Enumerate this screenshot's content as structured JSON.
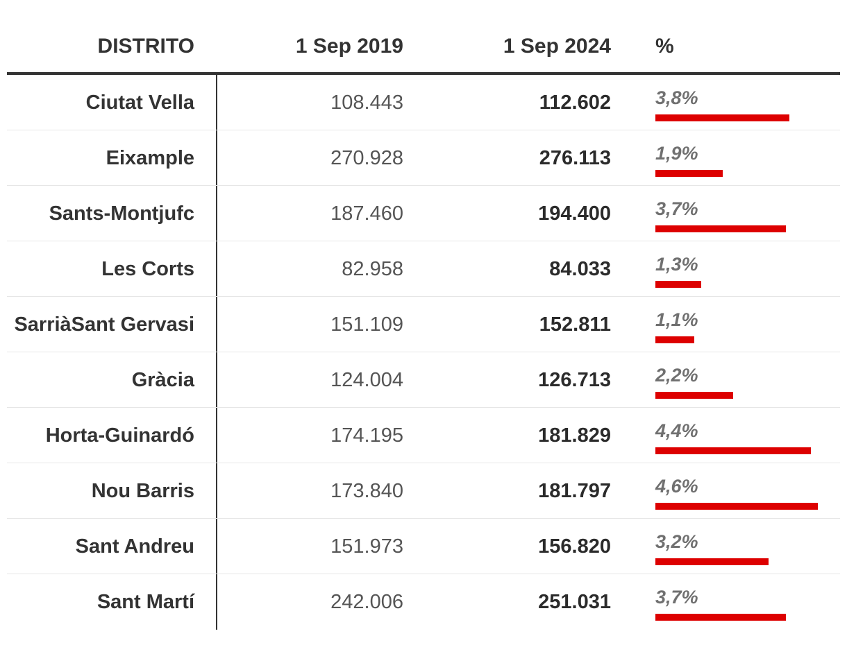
{
  "chart_data": {
    "type": "table",
    "columns": [
      "DISTRITO",
      "1 Sep 2019",
      "1 Sep 2024",
      "%"
    ],
    "bar_color": "#dd0000",
    "bar_max_pct": 4.6,
    "rows": [
      {
        "district": "Ciutat Vella",
        "y2019": "108.443",
        "y2024": "112.602",
        "pct_label": "3,8%",
        "pct": 3.8
      },
      {
        "district": "Eixample",
        "y2019": "270.928",
        "y2024": "276.113",
        "pct_label": "1,9%",
        "pct": 1.9
      },
      {
        "district": "Sants-Montjufc",
        "y2019": "187.460",
        "y2024": "194.400",
        "pct_label": "3,7%",
        "pct": 3.7
      },
      {
        "district": "Les Corts",
        "y2019": "82.958",
        "y2024": "84.033",
        "pct_label": "1,3%",
        "pct": 1.3
      },
      {
        "district": "SarriàSant Gervasi",
        "y2019": "151.109",
        "y2024": "152.811",
        "pct_label": "1,1%",
        "pct": 1.1
      },
      {
        "district": "Gràcia",
        "y2019": "124.004",
        "y2024": "126.713",
        "pct_label": "2,2%",
        "pct": 2.2
      },
      {
        "district": "Horta-Guinardó",
        "y2019": "174.195",
        "y2024": "181.829",
        "pct_label": "4,4%",
        "pct": 4.4
      },
      {
        "district": "Nou Barris",
        "y2019": "173.840",
        "y2024": "181.797",
        "pct_label": "4,6%",
        "pct": 4.6
      },
      {
        "district": "Sant Andreu",
        "y2019": "151.973",
        "y2024": "156.820",
        "pct_label": "3,2%",
        "pct": 3.2
      },
      {
        "district": "Sant Martí",
        "y2019": "242.006",
        "y2024": "251.031",
        "pct_label": "3,7%",
        "pct": 3.7
      }
    ]
  }
}
